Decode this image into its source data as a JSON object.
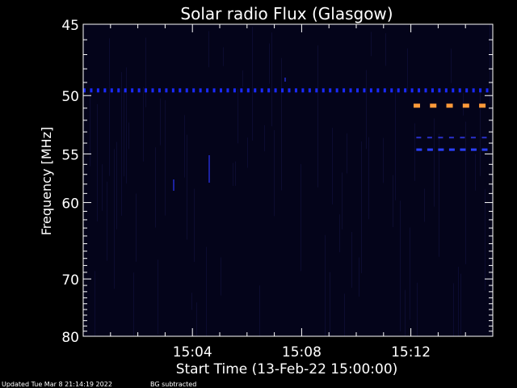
{
  "chart_data": {
    "type": "heatmap",
    "title": "Solar radio Flux (Glasgow)",
    "xlabel": "Start Time (13-Feb-22 15:00:00)",
    "ylabel": "Frequency [MHz]",
    "x_ticks": [
      "15:04",
      "15:08",
      "15:12"
    ],
    "x_tick_minutes": [
      4,
      8,
      12
    ],
    "xlim_minutes": [
      0,
      15
    ],
    "y_ticks": [
      45,
      50,
      55,
      60,
      70,
      80
    ],
    "ylim_mhz": [
      45,
      80
    ],
    "y_scale": "reciprocal",
    "background_color": "#000000",
    "plot_color": "#04041a",
    "axis_color": "#ffffff",
    "features": {
      "band_50mhz": {
        "freq_mhz": 49.6,
        "t_start": 0.0,
        "t_end": 15.0,
        "color": "#1a2aff"
      },
      "emission_51mhz": {
        "freq_mhz": 50.8,
        "t_start": 12.1,
        "t_end": 14.9,
        "color": "#ff9a3a"
      },
      "emission_53mhz": {
        "freq_mhz": 53.5,
        "t_start": 12.2,
        "t_end": 14.9,
        "color": "#2a30c8"
      },
      "emission_55mhz": {
        "freq_mhz": 54.6,
        "t_start": 12.2,
        "t_end": 14.9,
        "color": "#2a40ff"
      }
    }
  },
  "footer": {
    "updated": "Updated Tue Mar  8 21:14:19 2022",
    "bg_note": "BG subtracted"
  }
}
